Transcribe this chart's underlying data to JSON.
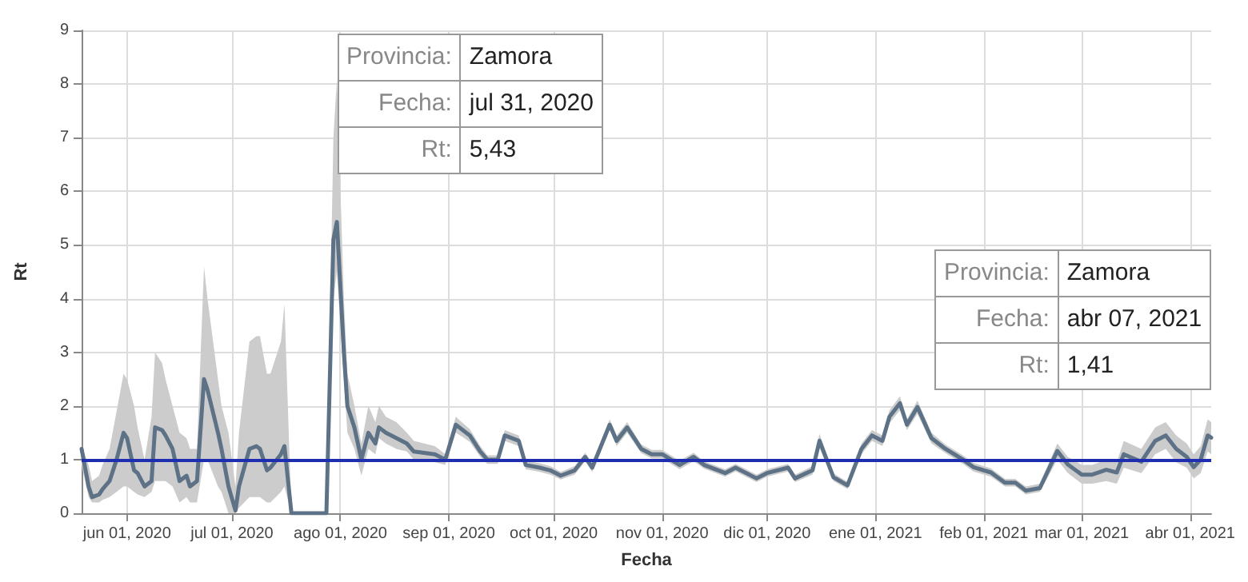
{
  "chart_data": {
    "type": "line",
    "xlabel": "Fecha",
    "ylabel": "Rt",
    "x": [
      "2020-05-19",
      "2020-05-21",
      "2020-05-22",
      "2020-05-24",
      "2020-05-25",
      "2020-05-27",
      "2020-05-29",
      "2020-05-31",
      "2020-06-01",
      "2020-06-03",
      "2020-06-04",
      "2020-06-06",
      "2020-06-08",
      "2020-06-09",
      "2020-06-11",
      "2020-06-12",
      "2020-06-14",
      "2020-06-16",
      "2020-06-18",
      "2020-06-19",
      "2020-06-21",
      "2020-06-23",
      "2020-06-24",
      "2020-06-27",
      "2020-06-28",
      "2020-06-30",
      "2020-07-02",
      "2020-07-03",
      "2020-07-06",
      "2020-07-08",
      "2020-07-09",
      "2020-07-11",
      "2020-07-12",
      "2020-07-15",
      "2020-07-16",
      "2020-07-18",
      "2020-07-28",
      "2020-07-30",
      "2020-07-31",
      "2020-08-02",
      "2020-08-03",
      "2020-08-05",
      "2020-08-07",
      "2020-08-09",
      "2020-08-11",
      "2020-08-12",
      "2020-08-14",
      "2020-08-17",
      "2020-08-20",
      "2020-08-22",
      "2020-08-28",
      "2020-08-31",
      "2020-09-03",
      "2020-09-05",
      "2020-09-07",
      "2020-09-10",
      "2020-09-12",
      "2020-09-15",
      "2020-09-17",
      "2020-09-21",
      "2020-09-23",
      "2020-09-27",
      "2020-09-30",
      "2020-10-03",
      "2020-10-07",
      "2020-10-10",
      "2020-10-12",
      "2020-10-17",
      "2020-10-19",
      "2020-10-22",
      "2020-10-26",
      "2020-10-29",
      "2020-11-01",
      "2020-11-06",
      "2020-11-10",
      "2020-11-13",
      "2020-11-19",
      "2020-11-22",
      "2020-11-28",
      "2020-12-01",
      "2020-12-07",
      "2020-12-09",
      "2020-12-14",
      "2020-12-16",
      "2020-12-20",
      "2020-12-24",
      "2020-12-28",
      "2020-12-31",
      "2021-01-03",
      "2021-01-05",
      "2021-01-08",
      "2021-01-10",
      "2021-01-13",
      "2021-01-17",
      "2021-01-21",
      "2021-01-26",
      "2021-01-29",
      "2021-02-03",
      "2021-02-07",
      "2021-02-10",
      "2021-02-13",
      "2021-02-17",
      "2021-02-22",
      "2021-02-25",
      "2021-03-01",
      "2021-03-04",
      "2021-03-08",
      "2021-03-11",
      "2021-03-13",
      "2021-03-18",
      "2021-03-22",
      "2021-03-25",
      "2021-03-28",
      "2021-03-31",
      "2021-04-02",
      "2021-04-04",
      "2021-04-06",
      "2021-04-07"
    ],
    "series": [
      {
        "color": "#5d7286",
        "values": [
          1.2,
          0.5,
          0.3,
          0.35,
          0.45,
          0.6,
          1.0,
          1.5,
          1.4,
          0.8,
          0.75,
          0.5,
          0.6,
          1.6,
          1.55,
          1.45,
          1.2,
          0.6,
          0.7,
          0.5,
          0.6,
          2.5,
          2.3,
          1.5,
          1.2,
          0.5,
          0.05,
          0.5,
          1.2,
          1.25,
          1.2,
          0.8,
          0.85,
          1.1,
          1.25,
          0,
          0,
          5.1,
          5.43,
          3.0,
          2.0,
          1.6,
          1.0,
          1.5,
          1.3,
          1.6,
          1.5,
          1.4,
          1.3,
          1.15,
          1.1,
          1.0,
          1.65,
          1.55,
          1.45,
          1.15,
          1.0,
          1.0,
          1.45,
          1.35,
          0.9,
          0.85,
          0.8,
          0.7,
          0.8,
          1.05,
          0.85,
          1.65,
          1.35,
          1.6,
          1.2,
          1.1,
          1.1,
          0.9,
          1.05,
          0.9,
          0.75,
          0.85,
          0.65,
          0.75,
          0.85,
          0.65,
          0.8,
          1.35,
          0.67,
          0.52,
          1.2,
          1.45,
          1.35,
          1.8,
          2.05,
          1.65,
          1.98,
          1.4,
          1.2,
          1.0,
          0.86,
          0.76,
          0.57,
          0.57,
          0.42,
          0.47,
          1.16,
          0.91,
          0.72,
          0.72,
          0.81,
          0.76,
          1.1,
          0.96,
          1.35,
          1.45,
          1.2,
          1.05,
          0.86,
          1.0,
          1.45,
          1.41
        ],
        "lower": [
          0.9,
          0.3,
          0.2,
          0.2,
          0.25,
          0.3,
          0.4,
          0.5,
          0.5,
          0.4,
          0.35,
          0.3,
          0.4,
          0.6,
          0.6,
          0.6,
          0.5,
          0.2,
          0.3,
          0.2,
          0.2,
          1.0,
          1.0,
          0.5,
          0.4,
          0.0,
          0.0,
          0.1,
          0.3,
          0.3,
          0.3,
          0.2,
          0.2,
          0.4,
          0.5,
          0,
          0,
          4.0,
          4.5,
          2.5,
          1.5,
          1.2,
          0.7,
          1.2,
          1.1,
          1.4,
          1.3,
          1.2,
          1.15,
          1.0,
          0.95,
          0.9,
          1.5,
          1.42,
          1.33,
          1.05,
          0.92,
          0.92,
          1.35,
          1.25,
          0.82,
          0.77,
          0.72,
          0.63,
          0.72,
          0.97,
          0.77,
          1.55,
          1.25,
          1.5,
          1.12,
          1.02,
          1.02,
          0.82,
          0.97,
          0.83,
          0.68,
          0.78,
          0.58,
          0.68,
          0.78,
          0.58,
          0.72,
          1.22,
          0.6,
          0.45,
          1.1,
          1.35,
          1.25,
          1.68,
          1.92,
          1.55,
          1.85,
          1.3,
          1.12,
          0.92,
          0.78,
          0.68,
          0.5,
          0.5,
          0.35,
          0.4,
          1.0,
          0.75,
          0.55,
          0.55,
          0.6,
          0.55,
          0.85,
          0.75,
          1.1,
          1.2,
          0.95,
          0.85,
          0.65,
          0.75,
          1.15,
          1.1
        ],
        "upper": [
          1.25,
          0.9,
          0.6,
          0.7,
          0.9,
          1.2,
          1.9,
          2.6,
          2.5,
          2.0,
          1.6,
          1.0,
          1.8,
          3.0,
          2.8,
          2.5,
          2.0,
          1.5,
          1.4,
          1.2,
          1.2,
          4.6,
          4.0,
          2.5,
          2.0,
          1.5,
          0.5,
          1.5,
          3.2,
          3.3,
          3.3,
          2.6,
          2.6,
          3.2,
          3.9,
          0,
          0,
          7.0,
          8.1,
          4.0,
          2.6,
          2.0,
          1.3,
          2.0,
          1.7,
          2.0,
          1.8,
          1.7,
          1.5,
          1.35,
          1.25,
          1.1,
          1.8,
          1.68,
          1.57,
          1.25,
          1.08,
          1.08,
          1.55,
          1.45,
          0.98,
          0.93,
          0.88,
          0.77,
          0.88,
          1.13,
          0.93,
          1.75,
          1.45,
          1.7,
          1.28,
          1.18,
          1.18,
          0.98,
          1.13,
          0.97,
          0.82,
          0.92,
          0.72,
          0.82,
          0.92,
          0.72,
          0.88,
          1.48,
          0.74,
          0.59,
          1.3,
          1.55,
          1.45,
          1.92,
          2.18,
          1.75,
          2.1,
          1.5,
          1.28,
          1.08,
          0.94,
          0.84,
          0.64,
          0.64,
          0.5,
          0.55,
          1.3,
          1.05,
          0.9,
          0.9,
          1.0,
          0.95,
          1.35,
          1.2,
          1.6,
          1.7,
          1.45,
          1.3,
          1.1,
          1.25,
          1.75,
          1.7
        ]
      }
    ],
    "xlim": [
      "2020-05-19",
      "2021-04-07"
    ],
    "xticks": [
      {
        "value": "2020-06-01",
        "label": "jun 01, 2020"
      },
      {
        "value": "2020-07-01",
        "label": "jul 01, 2020"
      },
      {
        "value": "2020-08-01",
        "label": "ago 01, 2020"
      },
      {
        "value": "2020-09-01",
        "label": "sep 01, 2020"
      },
      {
        "value": "2020-10-01",
        "label": "oct 01, 2020"
      },
      {
        "value": "2020-11-01",
        "label": "nov 01, 2020"
      },
      {
        "value": "2020-12-01",
        "label": "dic 01, 2020"
      },
      {
        "value": "2021-01-01",
        "label": "ene 01, 2021"
      },
      {
        "value": "2021-02-01",
        "label": "feb 01, 2021"
      },
      {
        "value": "2021-03-01",
        "label": "mar 01, 2021"
      },
      {
        "value": "2021-04-01",
        "label": "abr 01, 2021"
      }
    ],
    "ylim": [
      0,
      9
    ],
    "yticks": [
      0,
      1,
      2,
      3,
      4,
      5,
      6,
      7,
      8,
      9
    ],
    "grid": true,
    "marker": "none",
    "ref_lines": [
      {
        "axis": "y",
        "value": 1,
        "color": "#1f2db0"
      }
    ],
    "annotations": [
      {
        "text": "Provincia: Zamora\nFecha: jul 31, 2020\nRt: 5,43",
        "x": "2020-07-31",
        "y": 5.43
      },
      {
        "text": "Provincia: Zamora\nFecha: abr 07, 2021\nRt: 1,41",
        "x": "2021-04-07",
        "y": 1.41
      }
    ]
  }
}
